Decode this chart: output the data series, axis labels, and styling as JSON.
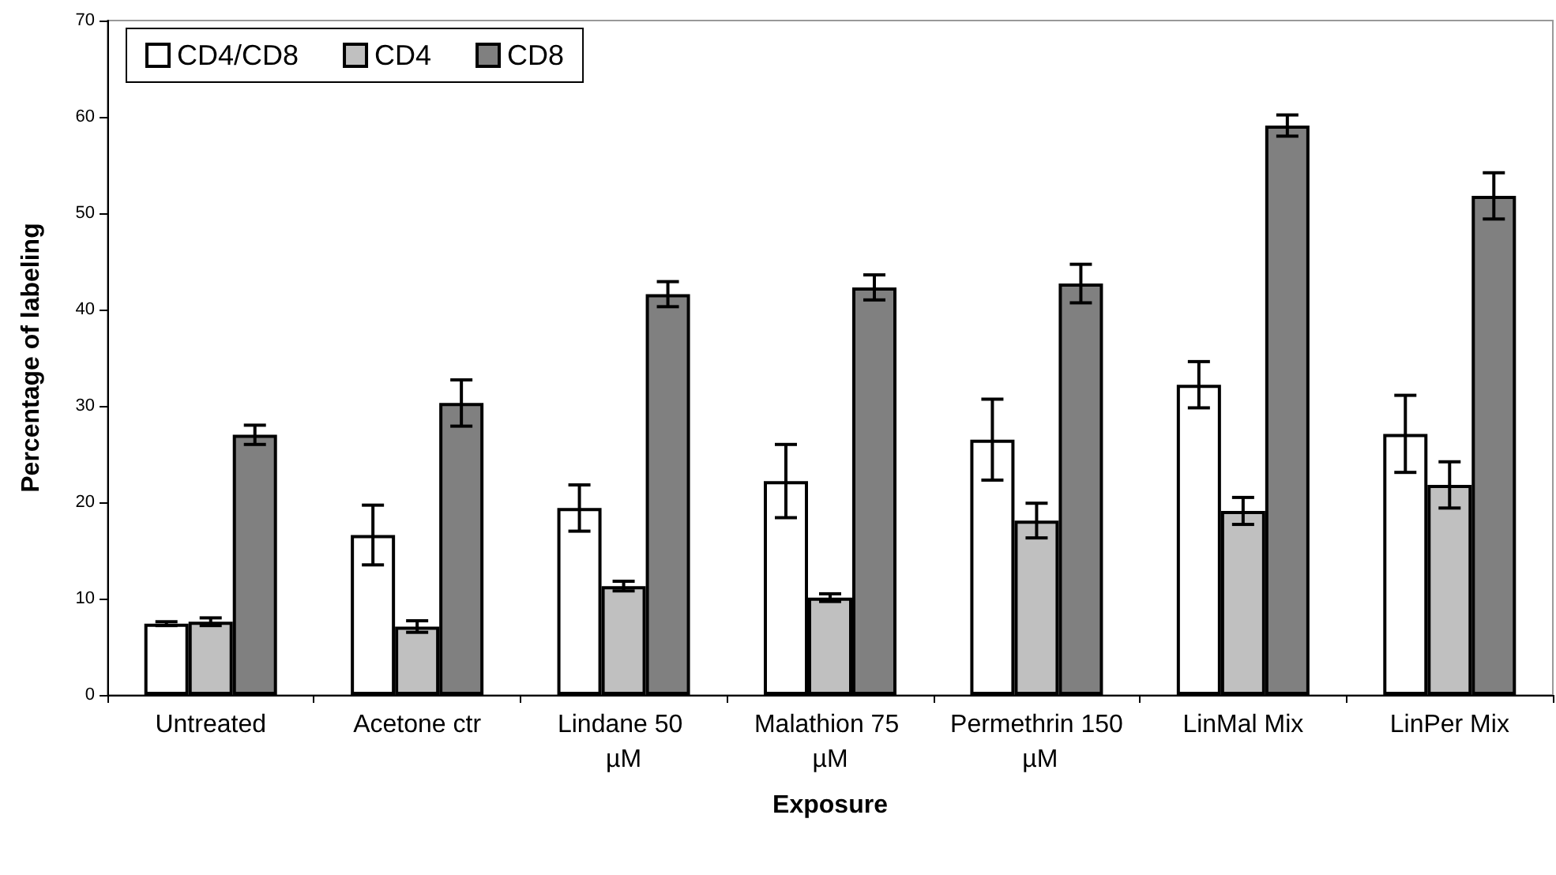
{
  "chart_data": {
    "type": "bar",
    "xlabel": "Exposure",
    "ylabel": "Percentage of labeling",
    "categories": [
      "Untreated",
      "Acetone ctr",
      "Lindane 50 µM",
      "Malathion 75 µM",
      "Permethrin 150 µM",
      "LinMal Mix",
      "LinPer Mix"
    ],
    "series": [
      {
        "name": "CD4/CD8",
        "color": "#ffffff",
        "values": [
          7.4,
          16.6,
          19.4,
          22.2,
          26.5,
          32.2,
          27.1
        ],
        "errors": [
          0.2,
          3.1,
          2.4,
          3.8,
          4.2,
          2.4,
          4.0
        ]
      },
      {
        "name": "CD4",
        "color": "#c0c0c0",
        "values": [
          7.6,
          7.1,
          11.3,
          10.1,
          18.1,
          19.1,
          21.8
        ],
        "errors": [
          0.4,
          0.6,
          0.5,
          0.4,
          1.8,
          1.4,
          2.4
        ]
      },
      {
        "name": "CD8",
        "color": "#808080",
        "values": [
          27.0,
          30.3,
          41.6,
          42.3,
          42.7,
          59.1,
          51.8
        ],
        "errors": [
          1.0,
          2.4,
          1.3,
          1.3,
          2.0,
          1.1,
          2.4
        ]
      }
    ],
    "ylim": [
      0,
      70
    ],
    "yticks": [
      0,
      10,
      20,
      30,
      40,
      50,
      60,
      70
    ],
    "grid": false,
    "legend": "top left"
  }
}
